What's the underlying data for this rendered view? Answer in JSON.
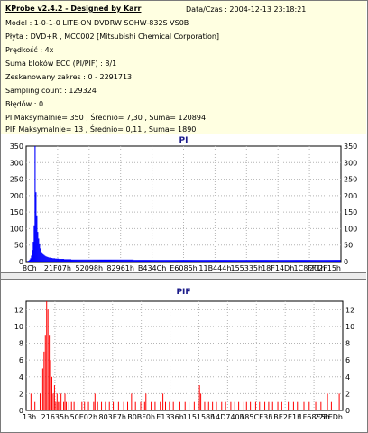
{
  "header": {
    "title": "KProbe v2.4.2 - Designed by Karr",
    "datetime": "Data/Czas : 2004-12-13 23:18:21"
  },
  "info_lines": [
    "Model : 1-0-1-0 LITE-ON DVDRW SOHW-832S  VS0B",
    "Płyta : DVD+R , MCC002 [Mitsubishi Chemical Corporation]",
    "Prędkość : 4x",
    "Suma bloków ECC (PI/PIF) : 8/1",
    "Zeskanowany zakres : 0 - 2291713",
    "Sampling count : 129324",
    "Błędów : 0",
    "PI Maksymalnie= 350 , Średnio= 7,30 , Suma= 120894",
    "PIF Maksymalnie= 13 , Średnio= 0,11 , Suma= 1890"
  ],
  "colors": {
    "pi_series": "#0000ff",
    "pif_series": "#ff0000",
    "title_color": "#1b1b8a",
    "info_bg": "#ffffe1"
  },
  "chart_data": [
    {
      "type": "area",
      "title": "PI",
      "ylim": [
        0,
        350
      ],
      "yticks": [
        0,
        50,
        100,
        150,
        200,
        250,
        300,
        350
      ],
      "xtick_labels": [
        "8Ch",
        "21F07h",
        "52098h",
        "82961h",
        "B434Ch",
        "E6085h",
        "11B444h",
        "155335h",
        "18F14Dh",
        "1C8FF1h",
        "202F15h"
      ],
      "series": [
        {
          "values": [
            0,
            2,
            3,
            6,
            10,
            18,
            35,
            60,
            110,
            350,
            210,
            140,
            90,
            70,
            55,
            40,
            30,
            25,
            22,
            20,
            18,
            16,
            15,
            14,
            13,
            12,
            12,
            11,
            11,
            10,
            10,
            10,
            9,
            9,
            9,
            9,
            8,
            8,
            8,
            8,
            8,
            8,
            7,
            7,
            7,
            7,
            7,
            7,
            7,
            7,
            6,
            6,
            6,
            6,
            6,
            6,
            6,
            6,
            6,
            6,
            6,
            6,
            6,
            6,
            6,
            6,
            6,
            6,
            6,
            6,
            6,
            6,
            6,
            6,
            6,
            6,
            6,
            6,
            6,
            6,
            6,
            6,
            6,
            6,
            6,
            6,
            6,
            6,
            6,
            6,
            6,
            6,
            6,
            6,
            6,
            6,
            6,
            6,
            6,
            6,
            6,
            6,
            6,
            6,
            6,
            6,
            6,
            6,
            6,
            6,
            6,
            6,
            6,
            6,
            6,
            6,
            6,
            6,
            6,
            6,
            5,
            5,
            5,
            5,
            5,
            5,
            5,
            5,
            5,
            5,
            5,
            5,
            5,
            5,
            5,
            5,
            5,
            5,
            5,
            5,
            5,
            5,
            5,
            5,
            5,
            5,
            5,
            5,
            5,
            5,
            5,
            5,
            5,
            5,
            5,
            5,
            5,
            5,
            5,
            5,
            5,
            5,
            5,
            5,
            5,
            5,
            5,
            5,
            5,
            5,
            5,
            5,
            5,
            5,
            5,
            5,
            5,
            5,
            5,
            5,
            5,
            5,
            5,
            5,
            5,
            5,
            5,
            5,
            5,
            5,
            5,
            5,
            5,
            5,
            5,
            5,
            5,
            5,
            5,
            5,
            5,
            5,
            5,
            5,
            5,
            5,
            5,
            5,
            5,
            5,
            5,
            5,
            5,
            5,
            5,
            5,
            5,
            5,
            5,
            5,
            5,
            5,
            5,
            5,
            5,
            5,
            5,
            5,
            5,
            5,
            5,
            5,
            5,
            5,
            5,
            5,
            5,
            5,
            5,
            5,
            5,
            5,
            5,
            5,
            5,
            5,
            5,
            5,
            5,
            5,
            5,
            5,
            5,
            5,
            5,
            5,
            5,
            5,
            5,
            5,
            5,
            5,
            5,
            5,
            5,
            5,
            5,
            5,
            5,
            5,
            5,
            5,
            5,
            5,
            5,
            5,
            5,
            5,
            5,
            5,
            5,
            5,
            5,
            5,
            5,
            5,
            5,
            5,
            5,
            5,
            5,
            5,
            5,
            5,
            5,
            5,
            5,
            5,
            5,
            5,
            5,
            5,
            5,
            5,
            5,
            5,
            5,
            5,
            5,
            5,
            5,
            5,
            5,
            5,
            5,
            5,
            5,
            5,
            5,
            5,
            5,
            5,
            5,
            5,
            5,
            5,
            5,
            5,
            5,
            5,
            5,
            5,
            5,
            5,
            5,
            5,
            5,
            5,
            5,
            5,
            5,
            5,
            5,
            5,
            5,
            5,
            5,
            5,
            5,
            5,
            5,
            5
          ]
        }
      ]
    },
    {
      "type": "bar",
      "title": "PIF",
      "ylim": [
        0,
        13
      ],
      "yticks": [
        0,
        2,
        4,
        6,
        8,
        10,
        12
      ],
      "xtick_labels": [
        "13h",
        "21635h",
        "50E02h",
        "803E7h",
        "B0BF0h",
        "E1336h",
        "115158h",
        "14D740h",
        "185CE3h",
        "1BE2E1h",
        "1F68E5h",
        "22EEDh"
      ],
      "series": [
        {
          "values": [
            0,
            0,
            0,
            2,
            0,
            0,
            1,
            0,
            0,
            0,
            2,
            0,
            5,
            7,
            9,
            13,
            12,
            9,
            6,
            4,
            2,
            3,
            1,
            2,
            1,
            1,
            2,
            0,
            1,
            2,
            1,
            0,
            1,
            0,
            1,
            0,
            1,
            0,
            0,
            1,
            0,
            0,
            1,
            0,
            1,
            0,
            0,
            1,
            0,
            0,
            0,
            1,
            2,
            0,
            1,
            0,
            0,
            1,
            0,
            0,
            1,
            0,
            0,
            1,
            0,
            0,
            1,
            0,
            0,
            0,
            1,
            0,
            0,
            0,
            1,
            0,
            0,
            1,
            0,
            0,
            2,
            0,
            0,
            1,
            0,
            0,
            0,
            1,
            0,
            0,
            1,
            2,
            0,
            0,
            0,
            1,
            0,
            0,
            1,
            0,
            0,
            0,
            1,
            0,
            2,
            0,
            1,
            0,
            0,
            1,
            0,
            0,
            1,
            0,
            0,
            0,
            0,
            1,
            0,
            0,
            0,
            1,
            0,
            0,
            1,
            0,
            0,
            0,
            1,
            0,
            0,
            1,
            3,
            2,
            0,
            0,
            1,
            0,
            0,
            1,
            0,
            0,
            1,
            0,
            0,
            1,
            0,
            0,
            0,
            1,
            0,
            0,
            1,
            0,
            0,
            0,
            1,
            0,
            0,
            1,
            0,
            0,
            1,
            0,
            0,
            0,
            1,
            0,
            1,
            0,
            0,
            1,
            0,
            0,
            0,
            1,
            0,
            0,
            1,
            0,
            0,
            0,
            1,
            0,
            0,
            1,
            0,
            0,
            1,
            0,
            0,
            0,
            1,
            0,
            0,
            1,
            0,
            0,
            0,
            0,
            1,
            0,
            0,
            0,
            1,
            0,
            0,
            1,
            0,
            0,
            0,
            0,
            1,
            0,
            0,
            0,
            1,
            0,
            0,
            0,
            0,
            1,
            0,
            0,
            0,
            1,
            0,
            0,
            0,
            0,
            2,
            0,
            0,
            1,
            0,
            0,
            0,
            0,
            0,
            2,
            0,
            0
          ]
        }
      ]
    }
  ]
}
